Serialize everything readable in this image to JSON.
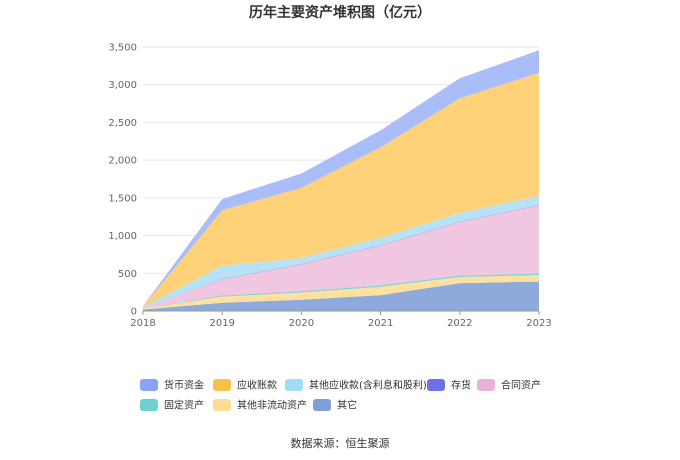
{
  "chart_data": {
    "type": "area",
    "stacked": true,
    "title": "历年主要资产堆积图（亿元）",
    "xlabel": "",
    "ylabel": "",
    "x": [
      "2018",
      "2019",
      "2020",
      "2021",
      "2022",
      "2023"
    ],
    "ylim": [
      0,
      3500
    ],
    "yticks": [
      0,
      500,
      1000,
      1500,
      2000,
      2500,
      3000,
      3500
    ],
    "ytick_labels": [
      "0",
      "500",
      "1,000",
      "1,500",
      "2,000",
      "2,500",
      "3,000",
      "3,500"
    ],
    "grid": "horizontal",
    "legend_position": "bottom",
    "series": [
      {
        "name": "其它",
        "color": "#8eaadb",
        "values": [
          20,
          110,
          150,
          210,
          370,
          390
        ]
      },
      {
        "name": "其他非流动资产",
        "color": "#ffe0a0",
        "values": [
          10,
          80,
          95,
          110,
          80,
          85
        ]
      },
      {
        "name": "固定资产",
        "color": "#7fd6d6",
        "values": [
          2,
          15,
          18,
          20,
          20,
          22
        ]
      },
      {
        "name": "合同资产",
        "color": "#f0c6e0",
        "values": [
          8,
          215,
          355,
          525,
          710,
          905
        ]
      },
      {
        "name": "存货",
        "color": "#7b7be8",
        "values": [
          0,
          5,
          5,
          5,
          5,
          5
        ]
      },
      {
        "name": "其他应收款(含利息和股利)",
        "color": "#b7e1f5",
        "values": [
          10,
          175,
          80,
          100,
          115,
          120
        ]
      },
      {
        "name": "应收账款",
        "color": "#ffd27a",
        "values": [
          10,
          735,
          930,
          1200,
          1520,
          1630
        ]
      },
      {
        "name": "货币资金",
        "color": "#a9bdfa",
        "values": [
          5,
          150,
          190,
          225,
          265,
          300
        ]
      }
    ],
    "legend_order": [
      "货币资金",
      "应收账款",
      "其他应收款(含利息和股利)",
      "存货",
      "合同资产",
      "固定资产",
      "其他非流动资产",
      "其它"
    ],
    "legend_swatch_colors": {
      "货币资金": "#8aa4f5",
      "应收账款": "#f8c24a",
      "其他应收款(含利息和股利)": "#9fdcf5",
      "存货": "#6f6fe6",
      "合同资产": "#e8b3d6",
      "固定资产": "#6fd0d0",
      "其他非流动资产": "#fddc94",
      "其它": "#7f9fd6"
    }
  },
  "footer": {
    "source": "数据来源：恒生聚源"
  }
}
